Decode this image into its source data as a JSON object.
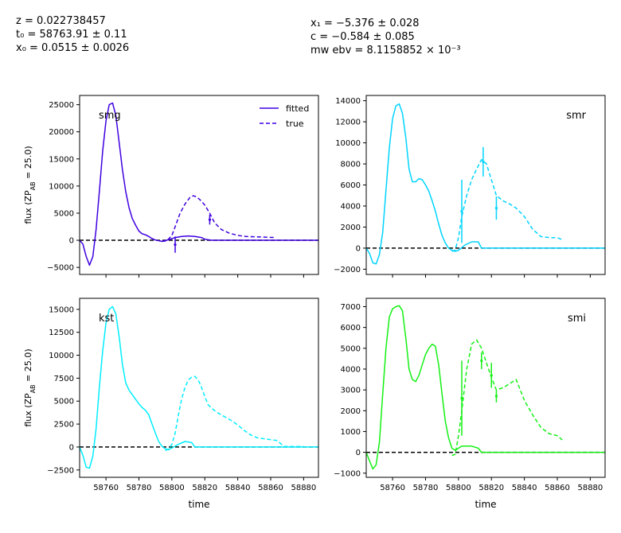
{
  "header": {
    "left": [
      "z = 0.022738457",
      "t₀ = 58763.91 ± 0.11",
      "x₀ = 0.0515 ± 0.0026"
    ],
    "right": [
      "x₁ = −5.376 ± 0.028",
      "c = −0.584 ± 0.085",
      "mw ebv = 8.1158852 × 10⁻³"
    ]
  },
  "legend": {
    "fitted": "fitted",
    "true": "true"
  },
  "chart_data": [
    {
      "type": "line",
      "band": "smg",
      "color": "#3f00e0",
      "xlim": [
        58744,
        58889
      ],
      "ylim": [
        -6300,
        26700
      ],
      "xticks": [
        58760,
        58780,
        58800,
        58820,
        58840,
        58860,
        58880
      ],
      "yticks": [
        -5000,
        0,
        5000,
        10000,
        15000,
        20000,
        25000
      ],
      "ytick_labels": [
        "−5000",
        "0",
        "5000",
        "10000",
        "15000",
        "20000",
        "25000"
      ],
      "xlabel": "",
      "ylabel": "flux (ZP_AB = 25.0)",
      "fitted": {
        "x": [
          58744,
          58746,
          58748,
          58750,
          58752,
          58754,
          58756,
          58758,
          58760,
          58762,
          58764,
          58766,
          58768,
          58770,
          58772,
          58774,
          58776,
          58778,
          58780,
          58782,
          58784,
          58786,
          58788,
          58790,
          58794,
          58798,
          58802,
          58806,
          58810,
          58814,
          58818,
          58820,
          58824,
          58830,
          58840,
          58860,
          58889
        ],
        "y": [
          0,
          -700,
          -3000,
          -4600,
          -3000,
          2000,
          9000,
          16500,
          22000,
          25000,
          25300,
          23000,
          18000,
          13000,
          9000,
          6000,
          4000,
          2800,
          1700,
          1200,
          1000,
          700,
          300,
          50,
          -200,
          100,
          500,
          700,
          800,
          700,
          500,
          200,
          0,
          0,
          0,
          0,
          0
        ]
      },
      "true": {
        "x": [
          58794,
          58797,
          58800,
          58802,
          58805,
          58808,
          58811,
          58813,
          58815,
          58817,
          58820,
          58823,
          58826,
          58830,
          58835,
          58840,
          58845,
          58855,
          58863
        ],
        "y": [
          -200,
          -100,
          900,
          2500,
          5000,
          6700,
          7900,
          8200,
          8000,
          7500,
          6500,
          5000,
          3200,
          2000,
          1300,
          900,
          700,
          600,
          500
        ]
      },
      "error_bars": [
        {
          "x": 58802,
          "y": -800,
          "err": 1500
        },
        {
          "x": 58823,
          "y": 3800,
          "err": 900
        }
      ],
      "zero_line": true
    },
    {
      "type": "line",
      "band": "smr",
      "color": "#00d4ff",
      "xlim": [
        58744,
        58889
      ],
      "ylim": [
        -2500,
        14500
      ],
      "xticks": [
        58760,
        58780,
        58800,
        58820,
        58840,
        58860,
        58880
      ],
      "yticks": [
        -2000,
        0,
        2000,
        4000,
        6000,
        8000,
        10000,
        12000,
        14000
      ],
      "ytick_labels": [
        "−2000",
        "0",
        "2000",
        "4000",
        "6000",
        "8000",
        "10000",
        "12000",
        "14000"
      ],
      "xlabel": "",
      "ylabel": "",
      "fitted": {
        "x": [
          58744,
          58746,
          58748,
          58750,
          58752,
          58754,
          58756,
          58758,
          58760,
          58762,
          58764,
          58766,
          58768,
          58770,
          58772,
          58774,
          58776,
          58778,
          58780,
          58782,
          58784,
          58786,
          58788,
          58790,
          58792,
          58794,
          58796,
          58798,
          58800,
          58804,
          58808,
          58812,
          58814,
          58820,
          58840,
          58889
        ],
        "y": [
          0,
          -500,
          -1400,
          -1500,
          -600,
          1500,
          5500,
          9500,
          12300,
          13500,
          13700,
          12800,
          10500,
          7500,
          6300,
          6300,
          6600,
          6500,
          6000,
          5400,
          4500,
          3500,
          2300,
          1200,
          500,
          0,
          -200,
          -300,
          -200,
          300,
          600,
          600,
          0,
          0,
          0,
          0
        ]
      },
      "true": {
        "x": [
          58796,
          58798,
          58800,
          58802,
          58805,
          58808,
          58811,
          58814,
          58817,
          58820,
          58823,
          58827,
          58831,
          58835,
          58840,
          58845,
          58850,
          58855,
          58860,
          58863
        ],
        "y": [
          -300,
          -200,
          1000,
          3000,
          5000,
          6500,
          7500,
          8400,
          8000,
          6500,
          5000,
          4500,
          4200,
          3800,
          3000,
          1800,
          1100,
          1000,
          1000,
          800
        ]
      },
      "error_bars": [
        {
          "x": 58802,
          "y": 3500,
          "err": 3000
        },
        {
          "x": 58815,
          "y": 8200,
          "err": 1400
        },
        {
          "x": 58823,
          "y": 3800,
          "err": 1100
        }
      ],
      "zero_line": true
    },
    {
      "type": "line",
      "band": "kst",
      "color": "#00eeff",
      "xlim": [
        58744,
        58889
      ],
      "ylim": [
        -3300,
        16200
      ],
      "xticks": [
        58760,
        58780,
        58800,
        58820,
        58840,
        58860,
        58880
      ],
      "xtick_labels": [
        "58760",
        "58780",
        "58800",
        "58820",
        "58840",
        "58860",
        "58880"
      ],
      "yticks": [
        -2500,
        0,
        2500,
        5000,
        7500,
        10000,
        12500,
        15000
      ],
      "ytick_labels": [
        "−2500",
        "0",
        "2500",
        "5000",
        "7500",
        "10000",
        "12500",
        "15000"
      ],
      "xlabel": "time",
      "ylabel": "flux (ZP_AB = 25.0)",
      "fitted": {
        "x": [
          58744,
          58746,
          58748,
          58750,
          58752,
          58754,
          58756,
          58758,
          58760,
          58762,
          58764,
          58766,
          58768,
          58770,
          58772,
          58774,
          58776,
          58778,
          58780,
          58782,
          58784,
          58786,
          58788,
          58790,
          58792,
          58794,
          58796,
          58798,
          58800,
          58804,
          58808,
          58812,
          58814,
          58820,
          58840,
          58889
        ],
        "y": [
          0,
          -900,
          -2200,
          -2300,
          -1000,
          2000,
          6500,
          10500,
          13500,
          15000,
          15300,
          14500,
          12000,
          9000,
          7000,
          6200,
          5700,
          5200,
          4700,
          4300,
          4000,
          3500,
          2500,
          1500,
          600,
          100,
          -200,
          -300,
          -100,
          300,
          600,
          500,
          0,
          0,
          0,
          0
        ]
      },
      "true": {
        "x": [
          58796,
          58798,
          58800,
          58802,
          58804,
          58806,
          58808,
          58810,
          58812,
          58814,
          58816,
          58818,
          58820,
          58822,
          58825,
          58828,
          58832,
          58836,
          58840,
          58844,
          58848,
          58852,
          58856,
          58860,
          58864,
          58868,
          58872,
          58876,
          58880
        ],
        "y": [
          -400,
          -200,
          300,
          1500,
          3500,
          5300,
          6500,
          7300,
          7600,
          7700,
          7300,
          6500,
          5500,
          4600,
          4100,
          3700,
          3300,
          2900,
          2400,
          1800,
          1300,
          1000,
          900,
          800,
          700,
          50,
          50,
          50,
          50
        ]
      },
      "error_bars": [],
      "zero_line": true
    },
    {
      "type": "line",
      "band": "smi",
      "color": "#14f014",
      "xlim": [
        58744,
        58889
      ],
      "ylim": [
        -1200,
        7400
      ],
      "xticks": [
        58760,
        58780,
        58800,
        58820,
        58840,
        58860,
        58880
      ],
      "xtick_labels": [
        "58760",
        "58780",
        "58800",
        "58820",
        "58840",
        "58860",
        "58880"
      ],
      "yticks": [
        -1000,
        0,
        1000,
        2000,
        3000,
        4000,
        5000,
        6000,
        7000
      ],
      "ytick_labels": [
        "−1000",
        "0",
        "1000",
        "2000",
        "3000",
        "4000",
        "5000",
        "6000",
        "7000"
      ],
      "xlabel": "time",
      "ylabel": "",
      "fitted": {
        "x": [
          58744,
          58746,
          58748,
          58750,
          58752,
          58754,
          58756,
          58758,
          58760,
          58762,
          58764,
          58766,
          58768,
          58770,
          58772,
          58774,
          58776,
          58778,
          58780,
          58782,
          58784,
          58786,
          58788,
          58790,
          58792,
          58794,
          58796,
          58798,
          58800,
          58802,
          58804,
          58808,
          58812,
          58814,
          58820,
          58840,
          58889
        ],
        "y": [
          0,
          -400,
          -800,
          -600,
          500,
          2800,
          5000,
          6500,
          6900,
          7000,
          7050,
          6800,
          5500,
          4000,
          3500,
          3400,
          3700,
          4200,
          4700,
          5000,
          5200,
          5100,
          4200,
          2800,
          1500,
          700,
          200,
          100,
          200,
          300,
          300,
          300,
          200,
          0,
          0,
          0,
          0
        ]
      },
      "true": {
        "x": [
          58796,
          58798,
          58800,
          58802,
          58805,
          58808,
          58811,
          58814,
          58817,
          58820,
          58823,
          58827,
          58831,
          58835,
          58840,
          58845,
          58850,
          58855,
          58860,
          58863
        ],
        "y": [
          -150,
          -100,
          800,
          2000,
          4000,
          5200,
          5400,
          5000,
          4300,
          3600,
          3000,
          3100,
          3300,
          3500,
          2500,
          1800,
          1200,
          900,
          800,
          600
        ]
      },
      "error_bars": [
        {
          "x": 58802,
          "y": 2600,
          "err": 1800
        },
        {
          "x": 58814,
          "y": 4400,
          "err": 400
        },
        {
          "x": 58820,
          "y": 3700,
          "err": 600
        },
        {
          "x": 58823,
          "y": 2700,
          "err": 300
        }
      ],
      "zero_line": true
    }
  ]
}
